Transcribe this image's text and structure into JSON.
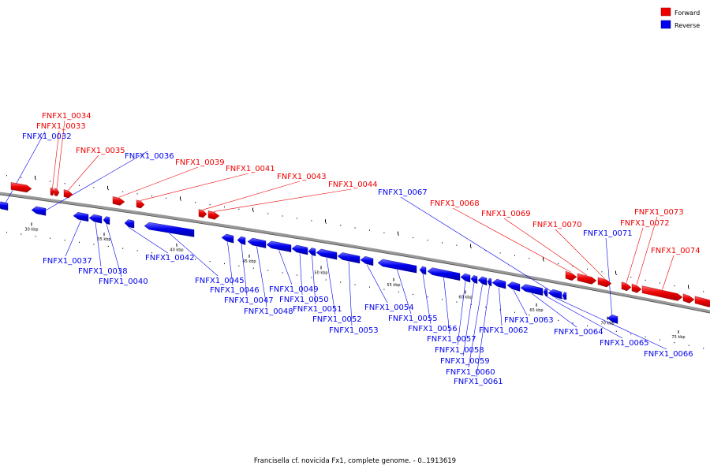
{
  "caption": "Francisella cf. novicida Fx1, complete genome. - 0..1913619",
  "legend": [
    {
      "label": "Forward",
      "color": "#ee0000"
    },
    {
      "label": "Reverse",
      "color": "#0000ee"
    }
  ],
  "colors": {
    "forward": "#ee0000",
    "reverse": "#0000ee",
    "backbone": "#888888",
    "tick": "#000000"
  },
  "ticks": [
    "30 kbp",
    "35 kbp",
    "40 kbp",
    "45 kbp",
    "50 kbp",
    "55 kbp",
    "60 kbp",
    "65 kbp",
    "70 kbp",
    "75 kbp"
  ],
  "genes": [
    {
      "id": "FNFX1_0032",
      "strand": "reverse"
    },
    {
      "id": "FNFX1_0033",
      "strand": "forward"
    },
    {
      "id": "FNFX1_0034",
      "strand": "forward"
    },
    {
      "id": "FNFX1_0035",
      "strand": "forward"
    },
    {
      "id": "FNFX1_0036",
      "strand": "reverse"
    },
    {
      "id": "FNFX1_0037",
      "strand": "reverse"
    },
    {
      "id": "FNFX1_0038",
      "strand": "reverse"
    },
    {
      "id": "FNFX1_0039",
      "strand": "forward"
    },
    {
      "id": "FNFX1_0040",
      "strand": "reverse"
    },
    {
      "id": "FNFX1_0041",
      "strand": "forward"
    },
    {
      "id": "FNFX1_0042",
      "strand": "reverse"
    },
    {
      "id": "FNFX1_0043",
      "strand": "forward"
    },
    {
      "id": "FNFX1_0044",
      "strand": "forward"
    },
    {
      "id": "FNFX1_0045",
      "strand": "reverse"
    },
    {
      "id": "FNFX1_0046",
      "strand": "reverse"
    },
    {
      "id": "FNFX1_0047",
      "strand": "reverse"
    },
    {
      "id": "FNFX1_0048",
      "strand": "reverse"
    },
    {
      "id": "FNFX1_0049",
      "strand": "reverse"
    },
    {
      "id": "FNFX1_0050",
      "strand": "reverse"
    },
    {
      "id": "FNFX1_0051",
      "strand": "reverse"
    },
    {
      "id": "FNFX1_0052",
      "strand": "reverse"
    },
    {
      "id": "FNFX1_0053",
      "strand": "reverse"
    },
    {
      "id": "FNFX1_0054",
      "strand": "reverse"
    },
    {
      "id": "FNFX1_0055",
      "strand": "reverse"
    },
    {
      "id": "FNFX1_0056",
      "strand": "reverse"
    },
    {
      "id": "FNFX1_0057",
      "strand": "reverse"
    },
    {
      "id": "FNFX1_0058",
      "strand": "reverse"
    },
    {
      "id": "FNFX1_0059",
      "strand": "reverse"
    },
    {
      "id": "FNFX1_0060",
      "strand": "reverse"
    },
    {
      "id": "FNFX1_0061",
      "strand": "reverse"
    },
    {
      "id": "FNFX1_0062",
      "strand": "reverse"
    },
    {
      "id": "FNFX1_0063",
      "strand": "reverse"
    },
    {
      "id": "FNFX1_0064",
      "strand": "reverse"
    },
    {
      "id": "FNFX1_0065",
      "strand": "reverse"
    },
    {
      "id": "FNFX1_0066",
      "strand": "reverse"
    },
    {
      "id": "FNFX1_0067",
      "strand": "reverse"
    },
    {
      "id": "FNFX1_0068",
      "strand": "forward"
    },
    {
      "id": "FNFX1_0069",
      "strand": "forward"
    },
    {
      "id": "FNFX1_0070",
      "strand": "forward"
    },
    {
      "id": "FNFX1_0071",
      "strand": "reverse"
    },
    {
      "id": "FNFX1_0072",
      "strand": "forward"
    },
    {
      "id": "FNFX1_0073",
      "strand": "forward"
    },
    {
      "id": "FNFX1_0074",
      "strand": "forward"
    }
  ]
}
